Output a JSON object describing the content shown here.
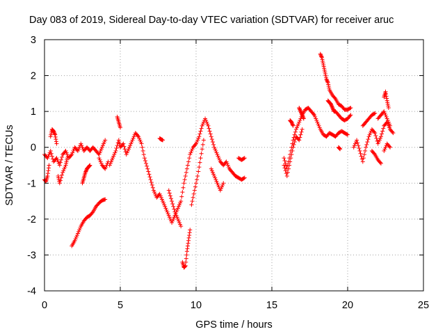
{
  "chart_data": {
    "type": "scatter",
    "title": "Day 083 of 2019, Sidereal Day-to-day VTEC variation (SDTVAR) for receiver aruc",
    "xlabel": "GPS time / hours",
    "ylabel": "SDTVAR / TECUs",
    "xlim": [
      0,
      25
    ],
    "ylim": [
      -4,
      3
    ],
    "xticks": [
      "0",
      "5",
      "10",
      "15",
      "20",
      "25"
    ],
    "yticks": [
      "-4",
      "-3",
      "-2",
      "-1",
      "0",
      "1",
      "2",
      "3"
    ],
    "grid": true,
    "marker": "+",
    "color": "#ff0000",
    "series": [
      {
        "name": "SDTVAR",
        "tracks": [
          {
            "x": [
              0.0,
              0.2,
              0.4,
              0.6,
              0.8,
              1.0,
              1.2,
              1.4,
              1.6,
              1.8,
              2.0,
              2.2,
              2.4,
              2.6,
              2.8,
              3.0,
              3.2,
              3.4,
              3.6,
              3.8,
              4.0
            ],
            "y": [
              -0.2,
              -0.3,
              -0.1,
              -0.4,
              -0.3,
              -0.5,
              -0.2,
              -0.1,
              -0.3,
              -0.2,
              0.0,
              -0.1,
              0.1,
              -0.1,
              0.0,
              -0.1,
              0.0,
              -0.1,
              -0.2,
              0.0,
              0.2
            ]
          },
          {
            "x": [
              0.0,
              0.1,
              0.2,
              0.3
            ],
            "y": [
              -0.9,
              -0.95,
              -0.8,
              -0.5
            ]
          },
          {
            "x": [
              0.4,
              0.5,
              0.6,
              0.7,
              0.8
            ],
            "y": [
              0.3,
              0.5,
              0.45,
              0.35,
              0.1
            ]
          },
          {
            "x": [
              0.9,
              1.0,
              1.2,
              1.4,
              1.5
            ],
            "y": [
              -0.8,
              -1.0,
              -0.7,
              -0.5,
              -0.3
            ]
          },
          {
            "x": [
              1.8,
              2.0,
              2.2,
              2.4,
              2.6,
              2.8,
              3.0,
              3.2,
              3.4,
              3.6,
              3.8,
              4.0
            ],
            "y": [
              -2.75,
              -2.6,
              -2.4,
              -2.2,
              -2.05,
              -1.95,
              -1.9,
              -1.8,
              -1.65,
              -1.55,
              -1.48,
              -1.45
            ]
          },
          {
            "x": [
              2.5,
              2.6,
              2.7,
              2.8,
              2.9,
              3.0
            ],
            "y": [
              -1.0,
              -0.85,
              -0.7,
              -0.6,
              -0.55,
              -0.5
            ]
          },
          {
            "x": [
              3.6,
              3.8,
              4.0,
              4.2
            ],
            "y": [
              -0.3,
              -0.5,
              -0.6,
              -0.4
            ]
          },
          {
            "x": [
              4.3,
              4.5,
              4.7,
              4.9,
              5.0,
              5.2,
              5.4,
              5.6,
              5.8,
              6.0,
              6.2,
              6.4,
              6.6,
              6.8,
              7.0,
              7.2,
              7.4,
              7.6,
              7.8,
              8.0,
              8.2,
              8.4,
              8.6,
              8.8,
              9.0,
              9.2,
              9.4,
              9.6,
              9.8,
              10.0,
              10.2,
              10.4,
              10.6,
              10.8,
              11.0,
              11.2,
              11.4,
              11.6,
              11.8,
              12.0,
              12.2,
              12.4,
              12.6,
              12.8,
              13.0,
              13.2
            ],
            "y": [
              -0.5,
              -0.3,
              -0.1,
              0.2,
              0.0,
              0.1,
              -0.2,
              0.0,
              0.2,
              0.4,
              0.3,
              0.1,
              -0.3,
              -0.6,
              -0.9,
              -1.2,
              -1.4,
              -1.3,
              -1.5,
              -1.7,
              -1.9,
              -2.1,
              -1.9,
              -1.7,
              -1.5,
              -1.0,
              -0.6,
              -0.2,
              0.0,
              0.1,
              0.3,
              0.6,
              0.8,
              0.6,
              0.3,
              0.0,
              -0.2,
              -0.4,
              -0.5,
              -0.4,
              -0.6,
              -0.7,
              -0.8,
              -0.85,
              -0.9,
              -0.85
            ]
          },
          {
            "x": [
              4.8,
              4.9,
              5.0
            ],
            "y": [
              0.85,
              0.7,
              0.55
            ]
          },
          {
            "x": [
              7.6,
              7.7,
              7.8
            ],
            "y": [
              0.25,
              0.22,
              0.2
            ]
          },
          {
            "x": [
              8.2,
              8.4,
              8.6,
              8.8,
              9.0
            ],
            "y": [
              -1.2,
              -1.5,
              -1.8,
              -2.0,
              -2.2
            ]
          },
          {
            "x": [
              9.1,
              9.2,
              9.3,
              9.4,
              9.5,
              9.6
            ],
            "y": [
              -3.2,
              -3.35,
              -3.3,
              -2.9,
              -2.6,
              -2.3
            ]
          },
          {
            "x": [
              9.7,
              9.9,
              10.1,
              10.3,
              10.5
            ],
            "y": [
              -1.6,
              -1.2,
              -0.8,
              -0.3,
              0.2
            ]
          },
          {
            "x": [
              11.0,
              11.2,
              11.4,
              11.6,
              11.8
            ],
            "y": [
              -0.6,
              -0.8,
              -1.0,
              -1.2,
              -1.0
            ]
          },
          {
            "x": [
              12.8,
              13.0,
              13.2
            ],
            "y": [
              -0.3,
              -0.35,
              -0.3
            ]
          },
          {
            "x": [
              15.8,
              16.0,
              16.2,
              16.4,
              16.6,
              16.8,
              17.0,
              17.2,
              17.4,
              17.6,
              17.8,
              18.0,
              18.2,
              18.4,
              18.6,
              18.8,
              19.0,
              19.2,
              19.4,
              19.6,
              19.8,
              20.0
            ],
            "y": [
              -0.3,
              -0.6,
              -0.2,
              0.2,
              0.5,
              0.7,
              0.9,
              1.05,
              1.1,
              1.0,
              0.9,
              0.7,
              0.5,
              0.35,
              0.3,
              0.4,
              0.35,
              0.3,
              0.4,
              0.45,
              0.4,
              0.35
            ]
          },
          {
            "x": [
              15.8,
              16.0,
              16.2,
              16.4,
              16.6,
              16.8,
              17.0
            ],
            "y": [
              -0.5,
              -0.8,
              -0.4,
              0.0,
              0.3,
              0.2,
              0.5
            ]
          },
          {
            "x": [
              16.2,
              16.3,
              16.4
            ],
            "y": [
              0.75,
              0.7,
              0.6
            ]
          },
          {
            "x": [
              16.8,
              16.9,
              17.0,
              17.1
            ],
            "y": [
              1.1,
              1.0,
              0.9,
              0.8
            ]
          },
          {
            "x": [
              18.2,
              18.3,
              18.4,
              18.5,
              18.6,
              18.7,
              18.8,
              19.0,
              19.2,
              19.4,
              19.6,
              19.8,
              20.0,
              20.2
            ],
            "y": [
              2.6,
              2.5,
              2.3,
              2.1,
              1.9,
              1.8,
              1.6,
              1.45,
              1.35,
              1.2,
              1.15,
              1.05,
              1.05,
              1.1
            ]
          },
          {
            "x": [
              18.7,
              18.8,
              18.9,
              19.0,
              19.1,
              19.2,
              19.4,
              19.6,
              19.8,
              20.0,
              20.2
            ],
            "y": [
              1.3,
              1.25,
              1.2,
              1.1,
              1.0,
              1.0,
              0.9,
              0.8,
              0.75,
              0.8,
              0.9
            ]
          },
          {
            "x": [
              19.4,
              19.5
            ],
            "y": [
              0.0,
              -0.05
            ]
          },
          {
            "x": [
              20.4,
              20.6,
              20.8,
              21.0,
              21.2,
              21.4,
              21.6,
              21.8,
              22.0,
              22.2,
              22.4,
              22.6,
              22.8,
              23.0
            ],
            "y": [
              0.0,
              0.2,
              -0.1,
              -0.4,
              0.0,
              0.3,
              0.5,
              0.4,
              0.1,
              0.3,
              0.6,
              0.7,
              0.5,
              0.4
            ]
          },
          {
            "x": [
              21.0,
              21.2,
              21.4,
              21.6,
              21.8
            ],
            "y": [
              0.6,
              0.7,
              0.8,
              0.9,
              0.95
            ]
          },
          {
            "x": [
              21.6,
              21.8,
              22.0,
              22.2
            ],
            "y": [
              -0.1,
              -0.2,
              -0.35,
              -0.45
            ]
          },
          {
            "x": [
              22.0,
              22.2,
              22.4,
              22.6,
              22.8
            ],
            "y": [
              0.8,
              0.9,
              1.0,
              0.8,
              0.6
            ]
          },
          {
            "x": [
              22.4,
              22.5,
              22.6,
              22.7
            ],
            "y": [
              1.4,
              1.55,
              1.3,
              1.1
            ]
          },
          {
            "x": [
              22.4,
              22.6,
              22.8
            ],
            "y": [
              -0.1,
              0.1,
              0.0
            ]
          }
        ]
      }
    ]
  }
}
